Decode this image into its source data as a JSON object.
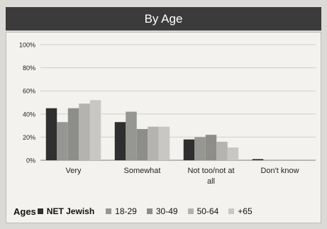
{
  "chart_data": {
    "type": "bar",
    "title": "By Age",
    "categories": [
      "Very",
      "Somewhat",
      "Not too/not at all",
      "Don't know"
    ],
    "category_label_lines": [
      [
        "Very"
      ],
      [
        "Somewhat"
      ],
      [
        "Not too/not at",
        "all"
      ],
      [
        "Don't know"
      ]
    ],
    "series": [
      {
        "name": "NET Jewish",
        "values": [
          45,
          33,
          18,
          1
        ],
        "color": "#2f2f2f"
      },
      {
        "name": "18-29",
        "values": [
          33,
          42,
          20,
          0
        ],
        "color": "#969693"
      },
      {
        "name": "30-49",
        "values": [
          45,
          27,
          22,
          0
        ],
        "color": "#8d8d8a"
      },
      {
        "name": "50-64",
        "values": [
          49,
          29,
          16,
          0
        ],
        "color": "#b4b3b0"
      },
      {
        "name": "+65",
        "values": [
          52,
          29,
          11,
          0
        ],
        "color": "#c8c7c3"
      }
    ],
    "ylim": [
      0,
      100
    ],
    "yticks": [
      0,
      20,
      40,
      60,
      80,
      100
    ],
    "ytick_labels": [
      "0%",
      "20%",
      "40%",
      "60%",
      "80%",
      "100%"
    ],
    "grid": true,
    "legend_title": "Ages",
    "legend_position": "bottom"
  }
}
